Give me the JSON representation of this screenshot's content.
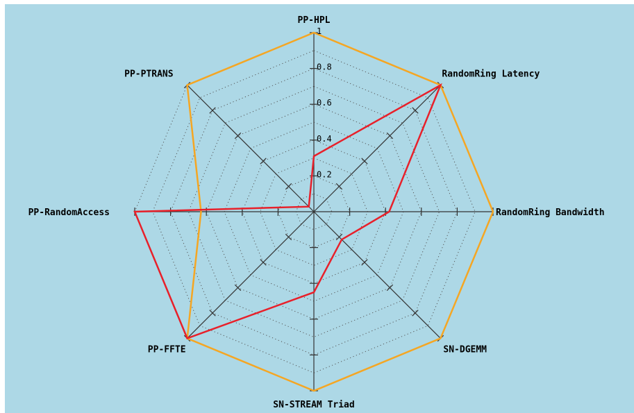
{
  "chart_data": {
    "type": "radar",
    "title": "",
    "axes": [
      "PP-HPL",
      "RandomRing Latency",
      "RandomRing Bandwidth",
      "SN-DGEMM",
      "SN-STREAM Triad",
      "PP-FFTE",
      "PP-RandomAccess",
      "PP-PTRANS"
    ],
    "range": [
      0,
      1
    ],
    "ticks": [
      "0.2",
      "0.4",
      "0.6",
      "0.8",
      "1"
    ],
    "grid": true,
    "series": [
      {
        "color": "#f5a623",
        "values": [
          1.0,
          1.0,
          1.0,
          1.0,
          1.0,
          1.0,
          0.63,
          1.0
        ]
      },
      {
        "color": "#e8202a",
        "values": [
          0.31,
          1.0,
          0.42,
          0.22,
          0.45,
          1.0,
          1.0,
          0.04
        ]
      }
    ]
  },
  "colors": {
    "background": "#add8e6",
    "axis": "#333333",
    "grid": "#555555"
  }
}
